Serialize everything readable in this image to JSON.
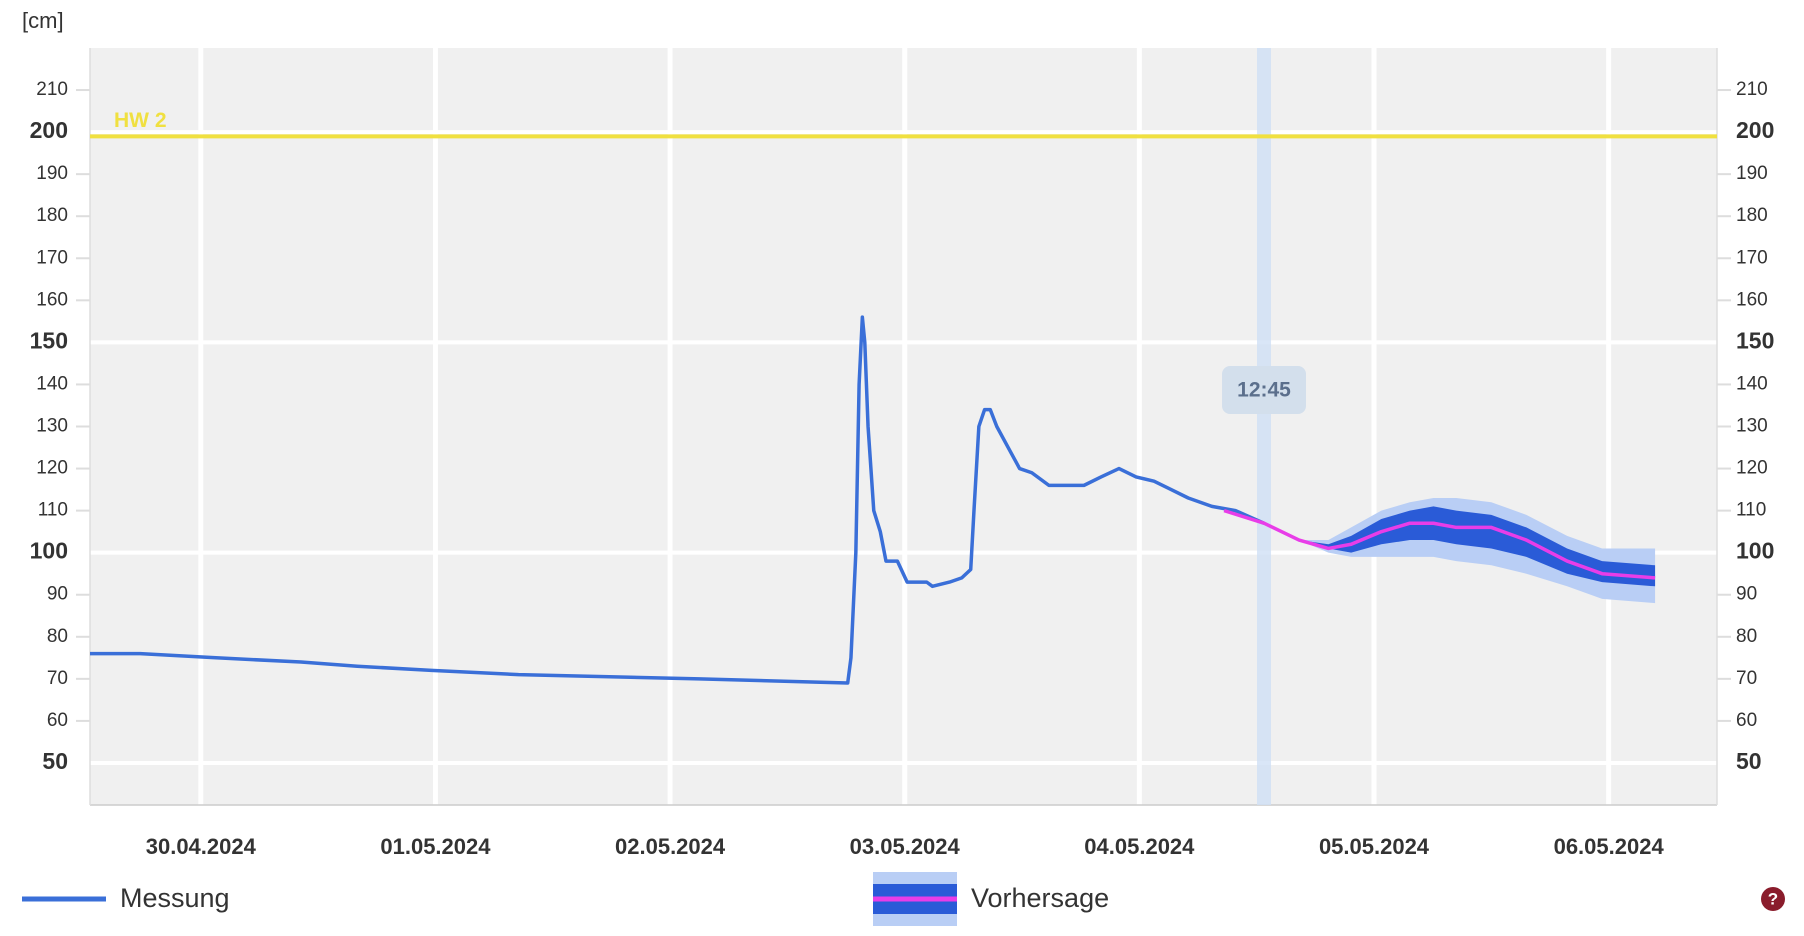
{
  "chart_data": {
    "type": "line",
    "ylabel": "[cm]",
    "xlim": [
      "2024-04-29T12:40",
      "2024-05-06T11:05"
    ],
    "xticks": [
      {
        "value": "2024-04-30T00:00",
        "label": "30.04.2024"
      },
      {
        "value": "2024-05-01T00:00",
        "label": "01.05.2024"
      },
      {
        "value": "2024-05-02T00:00",
        "label": "02.05.2024"
      },
      {
        "value": "2024-05-03T00:00",
        "label": "03.05.2024"
      },
      {
        "value": "2024-05-04T00:00",
        "label": "04.05.2024"
      },
      {
        "value": "2024-05-05T00:00",
        "label": "05.05.2024"
      },
      {
        "value": "2024-05-06T00:00",
        "label": "06.05.2024"
      }
    ],
    "ylim": [
      40,
      220
    ],
    "yticks": [
      50,
      60,
      70,
      80,
      90,
      100,
      110,
      120,
      130,
      140,
      150,
      160,
      170,
      180,
      190,
      200,
      210
    ],
    "threshold": {
      "label": "HW 2",
      "value": 199,
      "color": "#f0e040"
    },
    "now": {
      "x": "2024-05-04T12:45",
      "label": "12:45"
    },
    "series": [
      {
        "name": "Messung",
        "color": "#3a6fd8",
        "x": [
          "2024-04-29T12:40",
          "2024-04-29T17:48",
          "2024-04-30T01:33",
          "2024-04-30T10:15",
          "2024-04-30T16:00",
          "2024-04-30T23:35",
          "2024-05-01T08:30",
          "2024-05-02T03:00",
          "2024-05-02T18:10",
          "2024-05-02T18:30",
          "2024-05-02T19:00",
          "2024-05-02T19:20",
          "2024-05-02T19:40",
          "2024-05-02T19:55",
          "2024-05-02T20:15",
          "2024-05-02T20:50",
          "2024-05-02T21:30",
          "2024-05-02T22:05",
          "2024-05-02T23:15",
          "2024-05-03T00:15",
          "2024-05-03T02:15",
          "2024-05-03T02:50",
          "2024-05-03T04:35",
          "2024-05-03T05:50",
          "2024-05-03T06:45",
          "2024-05-03T07:05",
          "2024-05-03T07:35",
          "2024-05-03T08:10",
          "2024-05-03T08:45",
          "2024-05-03T09:25",
          "2024-05-03T10:35",
          "2024-05-03T11:45",
          "2024-05-03T13:00",
          "2024-05-03T14:45",
          "2024-05-03T18:20",
          "2024-05-03T20:05",
          "2024-05-03T21:55",
          "2024-05-03T23:40",
          "2024-05-04T01:30",
          "2024-05-04T03:15",
          "2024-05-04T05:00",
          "2024-05-04T07:25",
          "2024-05-04T09:50",
          "2024-05-04T12:45"
        ],
        "values": [
          76,
          76,
          75,
          74,
          73,
          72,
          71,
          70,
          69,
          75,
          100,
          140,
          156,
          150,
          130,
          110,
          105,
          98,
          98,
          93,
          93,
          92,
          93,
          94,
          96,
          110,
          130,
          134,
          134,
          130,
          125,
          120,
          119,
          116,
          116,
          118,
          120,
          118,
          117,
          115,
          113,
          111,
          110,
          107
        ]
      },
      {
        "name": "Vorhersage",
        "color": "#e83de8",
        "x": [
          "2024-05-04T08:40",
          "2024-05-04T12:45",
          "2024-05-04T16:20",
          "2024-05-04T19:20",
          "2024-05-04T21:40",
          "2024-05-05T00:45",
          "2024-05-05T03:40",
          "2024-05-05T06:05",
          "2024-05-05T08:25",
          "2024-05-05T12:00",
          "2024-05-05T15:35",
          "2024-05-05T19:45",
          "2024-05-05T23:20",
          "2024-05-06T04:45"
        ],
        "values": [
          110,
          107,
          103,
          101,
          102,
          105,
          107,
          107,
          106,
          106,
          103,
          98,
          95,
          94
        ],
        "bands": [
          {
            "color": "#b9cef5",
            "lower": [
              110,
              107,
              103,
              100,
              99,
              99,
              99,
              99,
              98,
              97,
              95,
              92,
              89,
              88
            ],
            "upper": [
              110,
              107,
              103,
              103,
              106,
              110,
              112,
              113,
              113,
              112,
              109,
              104,
              101,
              101
            ]
          },
          {
            "color": "#2a5bd7",
            "lower": [
              110,
              107,
              103,
              101,
              100,
              102,
              103,
              103,
              102,
              101,
              99,
              95,
              93,
              92
            ],
            "upper": [
              110,
              107,
              103,
              102,
              104,
              108,
              110,
              111,
              110,
              109,
              106,
              101,
              98,
              97
            ]
          }
        ]
      }
    ]
  }
}
